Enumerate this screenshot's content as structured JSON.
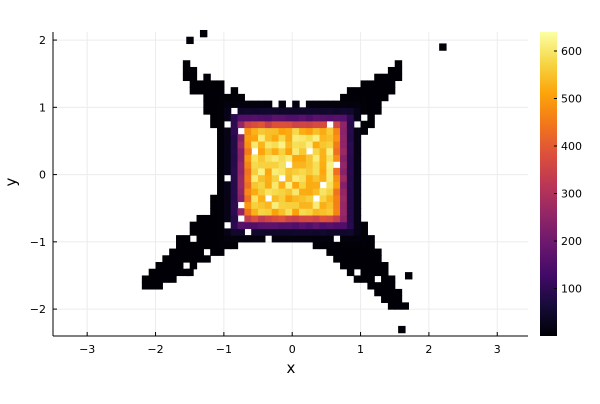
{
  "chart_data": {
    "type": "heatmap",
    "title": "",
    "xlabel": "x",
    "ylabel": "y",
    "xlim": [
      -3.5,
      3.45
    ],
    "ylim": [
      -2.4,
      2.12
    ],
    "x_ticks": [
      {
        "value": -3,
        "label": "−3"
      },
      {
        "value": -2,
        "label": "−2"
      },
      {
        "value": -1,
        "label": "−1"
      },
      {
        "value": 0,
        "label": "0"
      },
      {
        "value": 1,
        "label": "1"
      },
      {
        "value": 2,
        "label": "2"
      },
      {
        "value": 3,
        "label": "3"
      }
    ],
    "y_ticks": [
      {
        "value": -2,
        "label": "−2"
      },
      {
        "value": -1,
        "label": "−1"
      },
      {
        "value": 0,
        "label": "0"
      },
      {
        "value": 1,
        "label": "1"
      },
      {
        "value": 2,
        "label": "2"
      }
    ],
    "grid": true,
    "colormap": "inferno",
    "colorbar": {
      "min": 0,
      "max": 640,
      "ticks": [
        100,
        200,
        300,
        400,
        500,
        600
      ]
    },
    "distribution": {
      "bin_width": 0.1,
      "core_center": [
        0.0,
        0.05
      ],
      "core_half_width": 0.55,
      "peak": 620,
      "arm_tips": [
        {
          "x": 1.6,
          "y": 1.6
        },
        {
          "x": -1.6,
          "y": 1.6
        },
        {
          "x": -2.2,
          "y": -1.7
        },
        {
          "x": 1.6,
          "y": -2.0
        }
      ],
      "outliers": [
        {
          "x": 2.15,
          "y": 1.85
        },
        {
          "x": -1.35,
          "y": 2.05
        },
        {
          "x": -1.55,
          "y": 1.95
        },
        {
          "x": 1.55,
          "y": -2.35
        },
        {
          "x": 1.65,
          "y": -1.55
        },
        {
          "x": -1.55,
          "y": -1.5
        }
      ]
    }
  }
}
